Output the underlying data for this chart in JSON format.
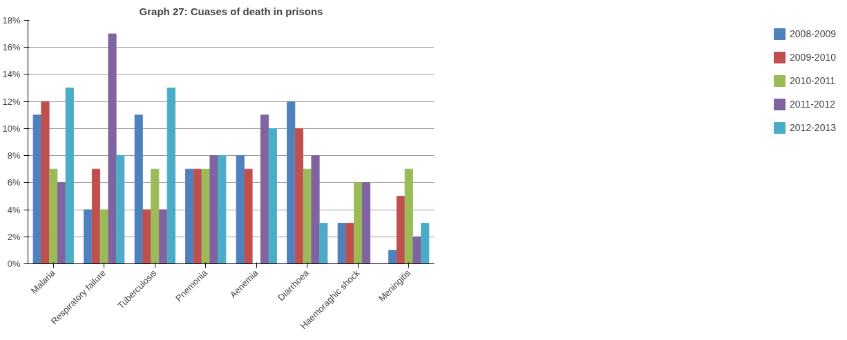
{
  "chart_data": {
    "type": "bar",
    "title": "Graph 27: Cuases of death in prisons",
    "categories": [
      "Malaria",
      "Respiratory failure",
      "Tuberculosis",
      "Pnemonia",
      "Aenemia",
      "Diarrhoea",
      "Haemoraghic shock",
      "Meningitis"
    ],
    "series": [
      {
        "name": "2008-2009",
        "color": "#4f81bd",
        "values": [
          11,
          4,
          11,
          7,
          8,
          12,
          3,
          1
        ]
      },
      {
        "name": "2009-2010",
        "color": "#c0504d",
        "values": [
          12,
          7,
          4,
          7,
          7,
          10,
          3,
          5
        ]
      },
      {
        "name": "2010-2011",
        "color": "#9bbb59",
        "values": [
          7,
          4,
          7,
          7,
          0,
          7,
          6,
          7
        ]
      },
      {
        "name": "2011-2012",
        "color": "#8064a2",
        "values": [
          6,
          17,
          4,
          8,
          11,
          8,
          6,
          2
        ]
      },
      {
        "name": "2012-2013",
        "color": "#4bacc6",
        "values": [
          13,
          8,
          13,
          8,
          10,
          3,
          0,
          3
        ]
      }
    ],
    "ylim": [
      0,
      18
    ],
    "yticks": [
      {
        "value": 0,
        "label": "0%"
      },
      {
        "value": 2,
        "label": "2%"
      },
      {
        "value": 4,
        "label": "4%"
      },
      {
        "value": 6,
        "label": "6%"
      },
      {
        "value": 8,
        "label": "8%"
      },
      {
        "value": 10,
        "label": "10%"
      },
      {
        "value": 12,
        "label": "12%"
      },
      {
        "value": 14,
        "label": "14%"
      },
      {
        "value": 16,
        "label": "16%"
      },
      {
        "value": 18,
        "label": "18%"
      }
    ],
    "grid": "y",
    "legend": "right"
  }
}
